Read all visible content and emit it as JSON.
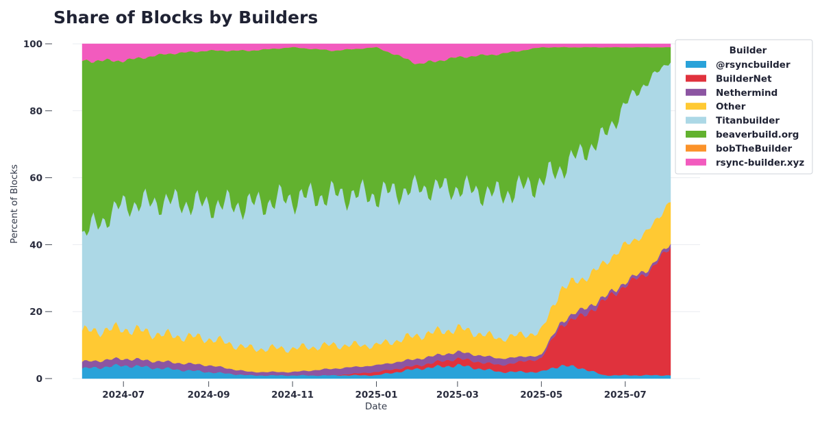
{
  "chart_data": {
    "type": "area",
    "stacked": true,
    "normalized_percent": true,
    "title": "Share of Blocks by Builders",
    "xlabel": "Date",
    "ylabel": "Percent of Blocks",
    "ylim": [
      0,
      100
    ],
    "xlim": [
      "2024-06-01",
      "2025-08-03"
    ],
    "y_ticks": [
      0,
      20,
      40,
      60,
      80,
      100
    ],
    "x_ticks": [
      "2024-07-01",
      "2024-09-01",
      "2024-11-01",
      "2025-01-01",
      "2025-03-01",
      "2025-05-01",
      "2025-07-01"
    ],
    "x_tick_labels": [
      "2024-07",
      "2024-09",
      "2024-11",
      "2025-01",
      "2025-03",
      "2025-05",
      "2025-07"
    ],
    "grid": true,
    "legend": {
      "title": "Builder",
      "placement": "right"
    },
    "x": [
      "2024-06-01",
      "2024-07-01",
      "2024-08-01",
      "2024-09-01",
      "2024-10-01",
      "2024-11-01",
      "2024-12-01",
      "2025-01-01",
      "2025-02-01",
      "2025-03-01",
      "2025-04-01",
      "2025-05-01",
      "2025-05-15",
      "2025-06-01",
      "2025-06-15",
      "2025-07-01",
      "2025-07-15",
      "2025-08-03"
    ],
    "series": [
      {
        "name": "@rsyncbuilder",
        "color": "#29a2d9",
        "values": [
          3,
          4,
          3,
          2,
          1,
          1,
          1,
          1,
          3,
          4,
          2,
          2,
          4,
          3,
          1,
          1,
          1,
          1
        ]
      },
      {
        "name": "BuilderNet",
        "color": "#e0323d",
        "values": [
          0,
          0,
          0,
          0,
          0,
          0,
          0,
          1,
          1,
          2,
          2,
          4,
          12,
          16,
          22,
          27,
          30,
          38
        ]
      },
      {
        "name": "Nethermind",
        "color": "#8c55a2",
        "values": [
          2,
          2,
          2,
          2,
          1,
          1,
          2,
          2,
          2,
          2,
          2,
          1,
          1,
          2,
          1,
          1,
          1,
          1
        ]
      },
      {
        "name": "Other",
        "color": "#ffc933",
        "values": [
          9,
          9,
          8,
          8,
          7,
          7,
          7,
          6,
          7,
          7,
          6,
          7,
          10,
          9,
          10,
          11,
          11,
          13
        ]
      },
      {
        "name": "Titanbuilder",
        "color": "#acd8e6",
        "values": [
          29,
          37,
          40,
          40,
          43,
          45,
          45,
          45,
          44,
          42,
          43,
          45,
          36,
          38,
          38,
          42,
          45,
          42
        ]
      },
      {
        "name": "beaverbuild.org",
        "color": "#62b22f",
        "values": [
          52,
          43,
          44,
          46,
          46,
          45,
          43,
          44,
          37,
          39,
          42,
          40,
          36,
          31,
          27,
          17,
          11,
          4
        ]
      },
      {
        "name": "bobTheBuilder",
        "color": "#fb9229",
        "values": [
          0,
          0,
          0,
          0,
          0,
          0,
          0,
          0,
          0,
          0,
          0,
          0,
          0,
          0,
          0,
          0,
          0,
          0
        ]
      },
      {
        "name": "rsync-builder.xyz",
        "color": "#f25bbe",
        "values": [
          5,
          5,
          3,
          2,
          2,
          1,
          2,
          1,
          6,
          4,
          3,
          1,
          1,
          1,
          1,
          1,
          1,
          1
        ]
      }
    ]
  }
}
